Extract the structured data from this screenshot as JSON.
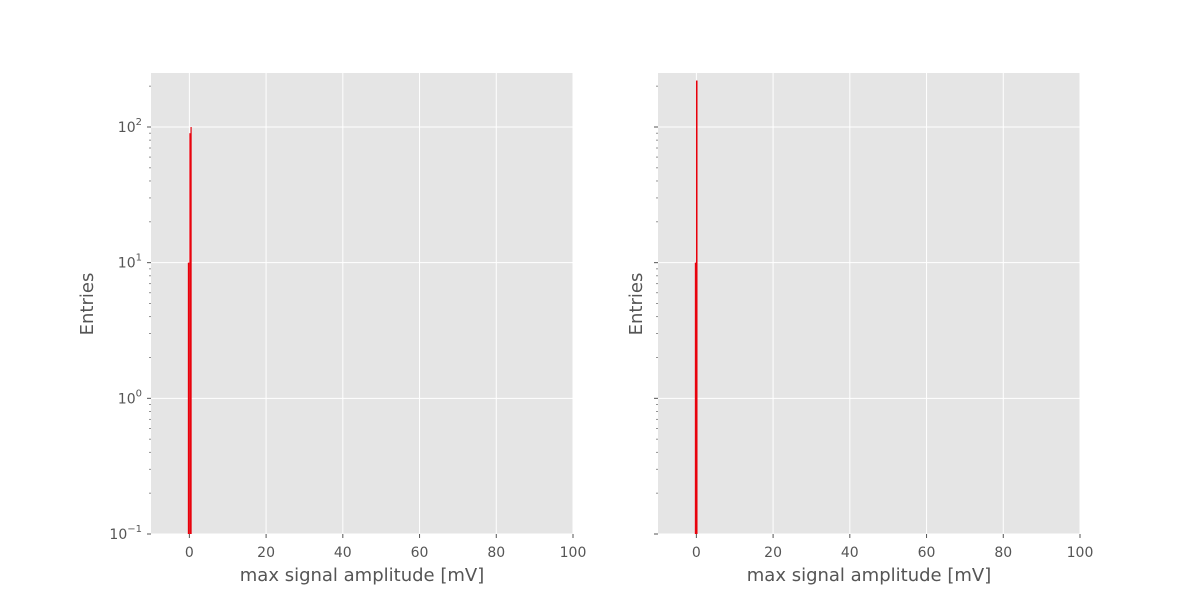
{
  "chart_data": [
    {
      "type": "bar",
      "xlabel": "max signal amplitude [mV]",
      "ylabel": "Entries",
      "xlim": [
        -10,
        100
      ],
      "ylim": [
        0.1,
        250
      ],
      "yscale": "log",
      "grid": true,
      "xticks": [
        "0",
        "20",
        "40",
        "60",
        "80",
        "100"
      ],
      "yticks": [
        {
          "base": "10",
          "exp": "−1"
        },
        {
          "base": "10",
          "exp": "0"
        },
        {
          "base": "10",
          "exp": "1"
        },
        {
          "base": "10",
          "exp": "2"
        }
      ],
      "bins": [
        {
          "x0": -0.4,
          "x1": 0.0,
          "value": 10
        },
        {
          "x0": 0.0,
          "x1": 0.3,
          "value": 90
        },
        {
          "x0": 0.3,
          "x1": 0.6,
          "value": 100
        }
      ],
      "bar_color": "#e8000b"
    },
    {
      "type": "bar",
      "xlabel": "max signal amplitude [mV]",
      "ylabel": "Entries",
      "xlim": [
        -10,
        100
      ],
      "ylim": [
        0.1,
        250
      ],
      "yscale": "log",
      "grid": true,
      "xticks": [
        "0",
        "20",
        "40",
        "60",
        "80",
        "100"
      ],
      "yticks": [],
      "bins": [
        {
          "x0": -0.4,
          "x1": -0.1,
          "value": 10
        },
        {
          "x0": -0.1,
          "x1": 0.3,
          "value": 220
        }
      ],
      "bar_color": "#e8000b"
    }
  ]
}
